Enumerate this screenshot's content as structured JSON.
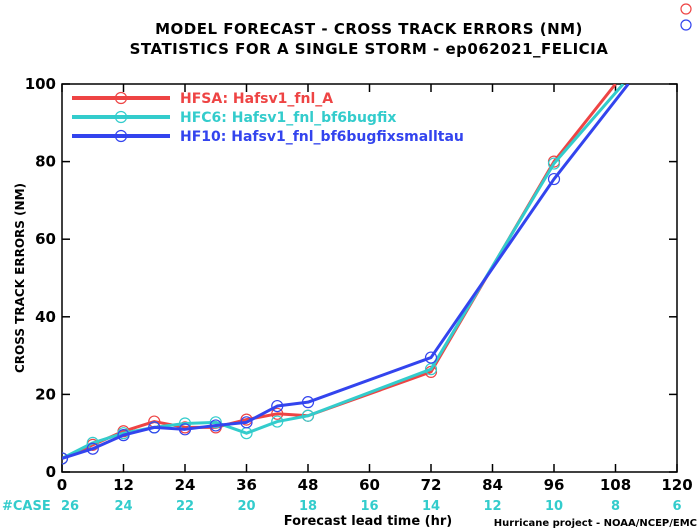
{
  "title_line1": "MODEL FORECAST - CROSS TRACK ERRORS (NM)",
  "title_line2": "STATISTICS FOR A SINGLE STORM - ep062021_FELICIA",
  "credit": "Hurricane project - NOAA/NCEP/EMC",
  "case_label": "#CASE",
  "case_color": "#33cccc",
  "corner_marker_colors": [
    "#ee4444",
    "#3344ee"
  ],
  "chart_data": {
    "type": "line",
    "title": "MODEL FORECAST - CROSS TRACK ERRORS (NM)",
    "subtitle": "STATISTICS FOR A SINGLE STORM - ep062021_FELICIA",
    "xlabel": "Forecast lead time (hr)",
    "ylabel": "CROSS TRACK ERRORS (NM)",
    "xlim": [
      0,
      120
    ],
    "ylim": [
      0,
      100
    ],
    "xticks": [
      0,
      12,
      24,
      36,
      48,
      60,
      72,
      84,
      96,
      108,
      120
    ],
    "yticks": [
      0,
      20,
      40,
      60,
      80,
      100
    ],
    "grid": false,
    "legend_position": "top-left",
    "case_counts": {
      "x": [
        0,
        12,
        24,
        36,
        48,
        60,
        72,
        84,
        96,
        108,
        120
      ],
      "values": [
        26,
        24,
        22,
        20,
        18,
        16,
        14,
        12,
        10,
        8,
        6
      ]
    },
    "series": [
      {
        "name": "HFSA: Hafsv1_fnl_A",
        "color": "#ee4444",
        "x": [
          0,
          6,
          12,
          18,
          24,
          30,
          36,
          42,
          48,
          72,
          96,
          108
        ],
        "y": [
          3.5,
          7.0,
          10.5,
          13.0,
          11.5,
          11.5,
          13.5,
          15.0,
          14.5,
          25.8,
          80.0,
          100
        ],
        "markers_at": [
          0,
          6,
          12,
          18,
          24,
          30,
          36,
          42,
          48,
          72,
          96
        ]
      },
      {
        "name": "HFC6: Hafsv1_fnl_bf6bugfix",
        "color": "#33cccc",
        "x": [
          0,
          6,
          12,
          18,
          24,
          30,
          36,
          42,
          48,
          72,
          96,
          109.5
        ],
        "y": [
          3.5,
          7.5,
          10.0,
          11.5,
          12.5,
          12.8,
          10.0,
          13.0,
          14.5,
          26.5,
          79.5,
          100
        ],
        "markers_at": [
          0,
          6,
          12,
          18,
          24,
          30,
          36,
          42,
          48,
          72,
          96
        ]
      },
      {
        "name": "HF10: Hafsv1_fnl_bf6bugfixsmalltau",
        "color": "#3344ee",
        "x": [
          0,
          6,
          12,
          18,
          24,
          30,
          36,
          42,
          48,
          72,
          96,
          110.5
        ],
        "y": [
          3.5,
          6.0,
          9.5,
          11.5,
          11.0,
          12.0,
          12.8,
          17.0,
          18.0,
          29.5,
          75.5,
          100
        ],
        "markers_at": [
          0,
          6,
          12,
          18,
          24,
          30,
          36,
          42,
          48,
          72,
          96
        ]
      }
    ]
  }
}
